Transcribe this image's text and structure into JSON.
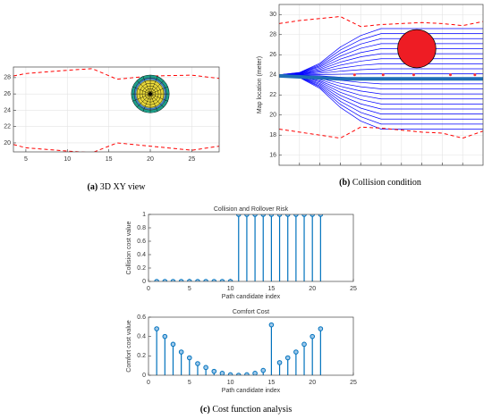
{
  "chart_data": [
    {
      "type": "line",
      "xlim": [
        3.5,
        28.3
      ],
      "ylim": [
        18.9,
        29.3
      ],
      "xticks": [
        5,
        10,
        15,
        20,
        25
      ],
      "yticks": [
        20,
        22,
        24,
        26,
        28
      ],
      "grid": true,
      "x": [
        3.5,
        5,
        10,
        13,
        16,
        20,
        25,
        28.3
      ],
      "series": [
        {
          "color": "#ff0000",
          "style": "dashed",
          "linewidth": 1,
          "values": [
            28.2,
            28.5,
            28.9,
            29.1,
            27.8,
            28.2,
            28.3,
            27.9
          ]
        },
        {
          "color": "#ff0000",
          "style": "dashed",
          "linewidth": 1,
          "values": [
            19.8,
            19.4,
            19.0,
            18.8,
            20.0,
            19.6,
            19.1,
            19.6
          ]
        }
      ],
      "circle": {
        "x": 20,
        "y": 26,
        "r": 2.3,
        "color": "#e8d83a",
        "mesh": true
      }
    },
    {
      "type": "line",
      "xlim": [
        0,
        10
      ],
      "ylim": [
        15,
        31
      ],
      "xticks": [
        1,
        2,
        3,
        4,
        5,
        6,
        7,
        8,
        9
      ],
      "xtick_labels": false,
      "yticks": [
        16,
        18,
        20,
        22,
        24,
        26,
        28,
        30
      ],
      "grid": true,
      "ylabel": "Map location (meter)",
      "x": [
        0,
        1,
        2,
        3,
        4,
        5,
        10
      ],
      "series": [
        {
          "color": "#0000ff",
          "linewidth": 0.7,
          "values": [
            24,
            23.73,
            22.65,
            20.76,
            19.41,
            18.6,
            18.6
          ]
        },
        {
          "color": "#0000ff",
          "linewidth": 0.7,
          "values": [
            24,
            23.76,
            22.78,
            21.06,
            19.84,
            19.1,
            19.1
          ]
        },
        {
          "color": "#0000ff",
          "linewidth": 0.7,
          "values": [
            24,
            23.78,
            22.9,
            21.36,
            20.26,
            19.6,
            19.6
          ]
        },
        {
          "color": "#0000ff",
          "linewidth": 0.7,
          "values": [
            24,
            23.81,
            23.03,
            21.66,
            20.69,
            20.1,
            20.1
          ]
        },
        {
          "color": "#0000ff",
          "linewidth": 0.7,
          "values": [
            24,
            23.83,
            23.15,
            21.96,
            21.11,
            20.6,
            20.6
          ]
        },
        {
          "color": "#0000ff",
          "linewidth": 0.7,
          "values": [
            24,
            23.86,
            23.28,
            22.26,
            21.54,
            21.1,
            21.1
          ]
        },
        {
          "color": "#0000ff",
          "linewidth": 0.7,
          "values": [
            24,
            23.88,
            23.4,
            22.56,
            21.96,
            21.6,
            21.6
          ]
        },
        {
          "color": "#0000ff",
          "linewidth": 0.7,
          "values": [
            24,
            23.91,
            23.53,
            22.86,
            22.39,
            22.1,
            22.1
          ]
        },
        {
          "color": "#0000ff",
          "linewidth": 0.7,
          "values": [
            24,
            23.93,
            23.65,
            23.16,
            22.81,
            22.6,
            22.6
          ]
        },
        {
          "color": "#0000ff",
          "linewidth": 0.7,
          "values": [
            24,
            23.96,
            23.78,
            23.46,
            23.24,
            23.1,
            23.1
          ]
        },
        {
          "color": "#0000ff",
          "linewidth": 0.7,
          "values": [
            24,
            23.98,
            23.9,
            23.76,
            23.66,
            23.6,
            23.6
          ]
        },
        {
          "color": "#0000ff",
          "linewidth": 0.7,
          "values": [
            24,
            24.01,
            24.03,
            24.06,
            24.09,
            24.1,
            24.1
          ]
        },
        {
          "color": "#0000ff",
          "linewidth": 0.7,
          "values": [
            24,
            24.03,
            24.15,
            24.36,
            24.51,
            24.6,
            24.6
          ]
        },
        {
          "color": "#0000ff",
          "linewidth": 0.7,
          "values": [
            24,
            24.06,
            24.28,
            24.66,
            24.94,
            25.1,
            25.1
          ]
        },
        {
          "color": "#0000ff",
          "linewidth": 0.7,
          "values": [
            24,
            24.08,
            24.4,
            24.96,
            25.36,
            25.6,
            25.6
          ]
        },
        {
          "color": "#0000ff",
          "linewidth": 0.7,
          "values": [
            24,
            24.11,
            24.53,
            25.26,
            25.79,
            26.1,
            26.1
          ]
        },
        {
          "color": "#0000ff",
          "linewidth": 0.7,
          "values": [
            24,
            24.13,
            24.65,
            25.56,
            26.21,
            26.6,
            26.6
          ]
        },
        {
          "color": "#0000ff",
          "linewidth": 0.7,
          "values": [
            24,
            24.16,
            24.78,
            25.86,
            26.64,
            27.1,
            27.1
          ]
        },
        {
          "color": "#0000ff",
          "linewidth": 0.7,
          "values": [
            24,
            24.18,
            24.9,
            26.16,
            27.06,
            27.6,
            27.6
          ]
        },
        {
          "color": "#0000ff",
          "linewidth": 0.7,
          "values": [
            24,
            24.21,
            25.03,
            26.46,
            27.49,
            28.1,
            28.1
          ]
        },
        {
          "color": "#0000ff",
          "linewidth": 0.7,
          "values": [
            24,
            24.23,
            25.15,
            26.76,
            27.91,
            28.6,
            28.6
          ]
        },
        {
          "color": "#1f6fb5",
          "linewidth": 4,
          "values": [
            23.9,
            23.8,
            23.7,
            23.6,
            23.6,
            23.6,
            23.6
          ]
        }
      ],
      "bounds": {
        "x": [
          0,
          1,
          2,
          3,
          4,
          5,
          6,
          7,
          8,
          9,
          10
        ],
        "color": "#ff0000",
        "upper": [
          29.1,
          29.4,
          29.6,
          29.8,
          28.8,
          29.0,
          29.1,
          29.2,
          29.1,
          28.9,
          29.3
        ],
        "lower": [
          18.6,
          18.3,
          18.0,
          17.7,
          18.8,
          18.7,
          18.5,
          18.3,
          18.2,
          17.7,
          18.4
        ]
      },
      "points": {
        "color": "#ff3030",
        "x": [
          3.7,
          5.1,
          6.6,
          8.4,
          9.6
        ],
        "y": [
          24,
          24,
          24,
          24,
          24
        ]
      },
      "circle": {
        "x": 6.75,
        "y": 26.6,
        "r": 1.9,
        "color": "#ee1c24"
      }
    },
    {
      "type": "stem",
      "title": "Collision and Rollover Risk",
      "xlabel": "Path candidate index",
      "ylabel": "Collision cost value",
      "xlim": [
        0,
        25
      ],
      "ylim": [
        0,
        1
      ],
      "xticks": [
        0,
        5,
        10,
        15,
        20,
        25
      ],
      "yticks": [
        0,
        0.2,
        0.4,
        0.6,
        0.8,
        1
      ],
      "color": "#0072bd",
      "x": [
        1,
        2,
        3,
        4,
        5,
        6,
        7,
        8,
        9,
        10,
        11,
        12,
        13,
        14,
        15,
        16,
        17,
        18,
        19,
        20,
        21
      ],
      "values": [
        0,
        0,
        0,
        0,
        0,
        0,
        0,
        0,
        0,
        0,
        1,
        1,
        1,
        1,
        1,
        1,
        1,
        1,
        1,
        1,
        1
      ]
    },
    {
      "type": "stem",
      "title": "Comfort Cost",
      "xlabel": "Path candidate index",
      "ylabel": "Comfort cost value",
      "xlim": [
        0,
        25
      ],
      "ylim": [
        0,
        0.6
      ],
      "xticks": [
        0,
        5,
        10,
        15,
        20,
        25
      ],
      "yticks": [
        0,
        0.2,
        0.4,
        0.6
      ],
      "color": "#0072bd",
      "x": [
        1,
        2,
        3,
        4,
        5,
        6,
        7,
        8,
        9,
        10,
        11,
        12,
        13,
        14,
        15,
        16,
        17,
        18,
        19,
        20,
        21
      ],
      "values": [
        0.48,
        0.4,
        0.32,
        0.24,
        0.18,
        0.12,
        0.08,
        0.04,
        0.02,
        0.005,
        0,
        0.005,
        0.02,
        0.05,
        0.52,
        0.13,
        0.18,
        0.24,
        0.32,
        0.4,
        0.48
      ]
    }
  ],
  "captions": [
    {
      "tag": "(a)",
      "text": "3D XY view"
    },
    {
      "tag": "(b)",
      "text": "Collision condition"
    },
    {
      "tag": "(c)",
      "text": "Cost function analysis"
    }
  ]
}
